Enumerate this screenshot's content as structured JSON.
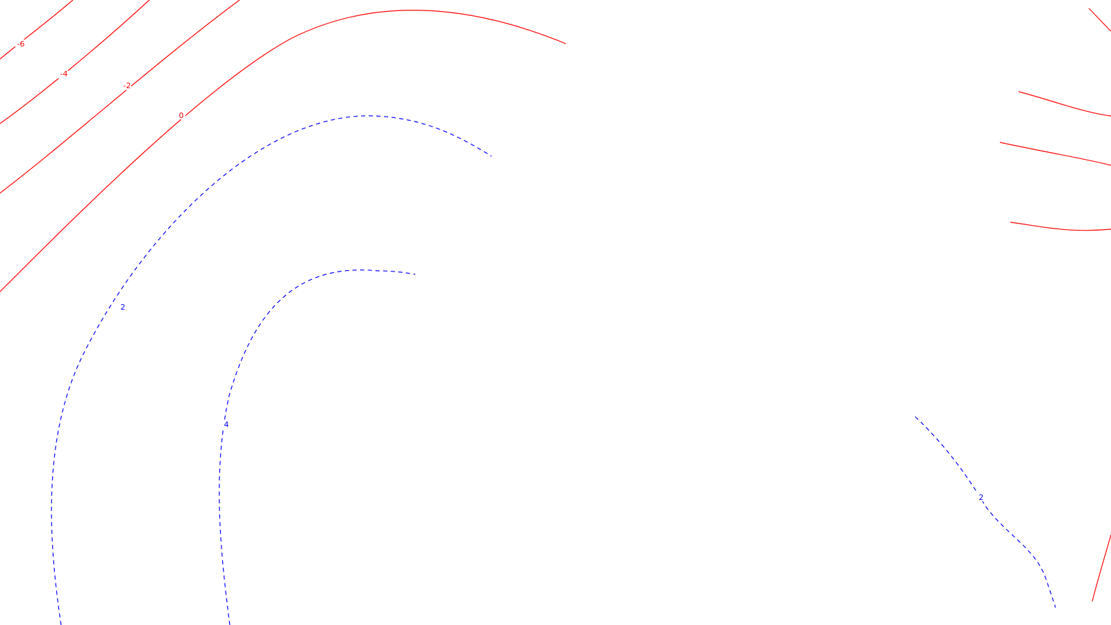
{
  "map": {
    "colors": {
      "negative_contour": "#ff0000",
      "positive_contour": "#0000ff",
      "background": "#ffffff"
    },
    "contours": [
      {
        "level": "-6",
        "style": "solid",
        "labeled": true
      },
      {
        "level": "-4",
        "style": "solid",
        "labeled": true
      },
      {
        "level": "-2",
        "style": "solid",
        "labeled": true
      },
      {
        "level": "0",
        "style": "solid",
        "labeled": true
      },
      {
        "level": "2",
        "style": "dashed",
        "labeled": true
      },
      {
        "level": "4",
        "style": "dashed",
        "labeled": true
      },
      {
        "level": "2",
        "style": "dashed",
        "labeled": true
      }
    ],
    "labels": {
      "neg6": "-6",
      "neg4": "-4",
      "neg2": "-2",
      "zero": "0",
      "pos2_left": "2",
      "pos4": "4",
      "pos2_right": "2"
    }
  }
}
